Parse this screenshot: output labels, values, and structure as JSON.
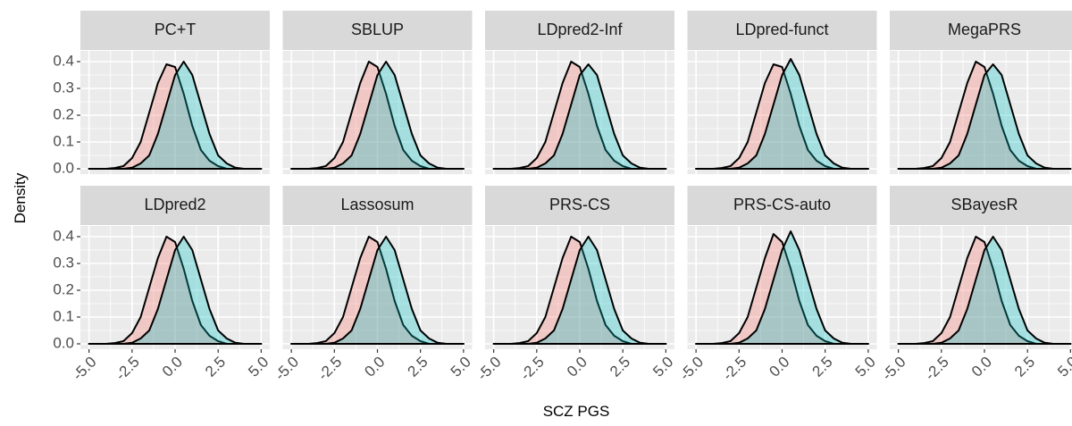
{
  "chart_data": {
    "type": "density",
    "xlabel": "SCZ PGS",
    "ylabel": "Density",
    "x": [
      -5,
      -4.5,
      -4,
      -3.5,
      -3,
      -2.5,
      -2,
      -1.5,
      -1,
      -0.5,
      0,
      0.5,
      1,
      1.5,
      2,
      2.5,
      3,
      3.5,
      4,
      4.5,
      5
    ],
    "xlim": [
      -5.5,
      5.5
    ],
    "ylim": [
      -0.02,
      0.44
    ],
    "xticks": [
      {
        "value": -5,
        "label": "-5.0"
      },
      -2.5,
      {
        "value": 0,
        "label": "0.0"
      },
      2.5,
      {
        "value": 5,
        "label": "5.0"
      }
    ],
    "yticks": [
      {
        "value": 0,
        "label": "0.0"
      },
      0.1,
      0.2,
      0.3,
      0.4
    ],
    "grid": true,
    "columns": 5,
    "panels": [
      {
        "title": "PC+T",
        "series": [
          {
            "color": "#F8766D",
            "values": [
              0,
              0,
              0,
              0.003,
              0.01,
              0.04,
              0.1,
              0.21,
              0.32,
              0.39,
              0.38,
              0.28,
              0.16,
              0.07,
              0.03,
              0.01,
              0,
              0,
              0,
              0,
              0
            ]
          },
          {
            "color": "#00BFC4",
            "values": [
              0,
              0,
              0,
              0,
              0,
              0.004,
              0.02,
              0.05,
              0.13,
              0.24,
              0.35,
              0.4,
              0.35,
              0.24,
              0.13,
              0.05,
              0.02,
              0.004,
              0,
              0,
              0
            ]
          }
        ]
      },
      {
        "title": "SBLUP",
        "series": [
          {
            "color": "#F8766D",
            "values": [
              0,
              0,
              0,
              0.003,
              0.01,
              0.04,
              0.1,
              0.21,
              0.32,
              0.4,
              0.38,
              0.28,
              0.16,
              0.07,
              0.03,
              0.01,
              0,
              0,
              0,
              0,
              0
            ]
          },
          {
            "color": "#00BFC4",
            "values": [
              0,
              0,
              0,
              0,
              0,
              0.004,
              0.02,
              0.05,
              0.13,
              0.24,
              0.35,
              0.4,
              0.35,
              0.24,
              0.13,
              0.05,
              0.02,
              0.004,
              0,
              0,
              0
            ]
          }
        ]
      },
      {
        "title": "LDpred2-Inf",
        "series": [
          {
            "color": "#F8766D",
            "values": [
              0,
              0,
              0,
              0.003,
              0.01,
              0.04,
              0.1,
              0.21,
              0.32,
              0.4,
              0.38,
              0.28,
              0.16,
              0.07,
              0.03,
              0.01,
              0,
              0,
              0,
              0,
              0
            ]
          },
          {
            "color": "#00BFC4",
            "values": [
              0,
              0,
              0,
              0,
              0,
              0.004,
              0.02,
              0.05,
              0.13,
              0.24,
              0.35,
              0.39,
              0.35,
              0.24,
              0.13,
              0.05,
              0.02,
              0.004,
              0,
              0,
              0
            ]
          }
        ]
      },
      {
        "title": "LDpred-funct",
        "series": [
          {
            "color": "#F8766D",
            "values": [
              0,
              0,
              0,
              0.003,
              0.01,
              0.04,
              0.1,
              0.21,
              0.32,
              0.39,
              0.38,
              0.28,
              0.16,
              0.07,
              0.03,
              0.01,
              0,
              0,
              0,
              0,
              0
            ]
          },
          {
            "color": "#00BFC4",
            "values": [
              0,
              0,
              0,
              0,
              0,
              0.004,
              0.02,
              0.05,
              0.13,
              0.24,
              0.35,
              0.41,
              0.35,
              0.24,
              0.13,
              0.05,
              0.02,
              0.004,
              0,
              0,
              0
            ]
          }
        ]
      },
      {
        "title": "MegaPRS",
        "series": [
          {
            "color": "#F8766D",
            "values": [
              0,
              0,
              0,
              0.003,
              0.01,
              0.04,
              0.1,
              0.21,
              0.32,
              0.4,
              0.38,
              0.28,
              0.16,
              0.07,
              0.03,
              0.01,
              0,
              0,
              0,
              0,
              0
            ]
          },
          {
            "color": "#00BFC4",
            "values": [
              0,
              0,
              0,
              0,
              0,
              0.004,
              0.02,
              0.05,
              0.13,
              0.24,
              0.35,
              0.39,
              0.35,
              0.24,
              0.13,
              0.05,
              0.02,
              0.004,
              0,
              0,
              0
            ]
          }
        ]
      },
      {
        "title": "LDpred2",
        "series": [
          {
            "color": "#F8766D",
            "values": [
              0,
              0,
              0,
              0.003,
              0.01,
              0.04,
              0.1,
              0.21,
              0.32,
              0.4,
              0.38,
              0.28,
              0.16,
              0.07,
              0.03,
              0.01,
              0,
              0,
              0,
              0,
              0
            ]
          },
          {
            "color": "#00BFC4",
            "values": [
              0,
              0,
              0,
              0,
              0,
              0.004,
              0.02,
              0.05,
              0.13,
              0.24,
              0.35,
              0.4,
              0.35,
              0.24,
              0.13,
              0.05,
              0.02,
              0.004,
              0,
              0,
              0
            ]
          }
        ]
      },
      {
        "title": "Lassosum",
        "series": [
          {
            "color": "#F8766D",
            "values": [
              0,
              0,
              0,
              0.003,
              0.01,
              0.04,
              0.1,
              0.21,
              0.32,
              0.4,
              0.38,
              0.28,
              0.16,
              0.07,
              0.03,
              0.01,
              0,
              0,
              0,
              0,
              0
            ]
          },
          {
            "color": "#00BFC4",
            "values": [
              0,
              0,
              0,
              0,
              0,
              0.004,
              0.02,
              0.05,
              0.13,
              0.24,
              0.35,
              0.4,
              0.35,
              0.24,
              0.13,
              0.05,
              0.02,
              0.004,
              0,
              0,
              0
            ]
          }
        ]
      },
      {
        "title": "PRS-CS",
        "series": [
          {
            "color": "#F8766D",
            "values": [
              0,
              0,
              0,
              0.003,
              0.01,
              0.04,
              0.1,
              0.21,
              0.32,
              0.4,
              0.38,
              0.28,
              0.16,
              0.07,
              0.03,
              0.01,
              0,
              0,
              0,
              0,
              0
            ]
          },
          {
            "color": "#00BFC4",
            "values": [
              0,
              0,
              0,
              0,
              0,
              0.004,
              0.02,
              0.05,
              0.13,
              0.24,
              0.35,
              0.4,
              0.35,
              0.24,
              0.13,
              0.05,
              0.02,
              0.004,
              0,
              0,
              0
            ]
          }
        ]
      },
      {
        "title": "PRS-CS-auto",
        "series": [
          {
            "color": "#F8766D",
            "values": [
              0,
              0,
              0,
              0.003,
              0.01,
              0.04,
              0.1,
              0.21,
              0.32,
              0.41,
              0.38,
              0.28,
              0.16,
              0.07,
              0.03,
              0.01,
              0,
              0,
              0,
              0,
              0
            ]
          },
          {
            "color": "#00BFC4",
            "values": [
              0,
              0,
              0,
              0,
              0,
              0.004,
              0.02,
              0.05,
              0.13,
              0.24,
              0.35,
              0.42,
              0.35,
              0.24,
              0.13,
              0.05,
              0.02,
              0.004,
              0,
              0,
              0
            ]
          }
        ]
      },
      {
        "title": "SBayesR",
        "series": [
          {
            "color": "#F8766D",
            "values": [
              0,
              0,
              0,
              0.003,
              0.01,
              0.04,
              0.1,
              0.21,
              0.32,
              0.4,
              0.38,
              0.28,
              0.16,
              0.07,
              0.03,
              0.01,
              0,
              0,
              0,
              0,
              0
            ]
          },
          {
            "color": "#00BFC4",
            "values": [
              0,
              0,
              0,
              0,
              0,
              0.004,
              0.02,
              0.05,
              0.13,
              0.24,
              0.35,
              0.4,
              0.35,
              0.24,
              0.13,
              0.05,
              0.02,
              0.004,
              0,
              0,
              0
            ]
          }
        ]
      }
    ]
  }
}
